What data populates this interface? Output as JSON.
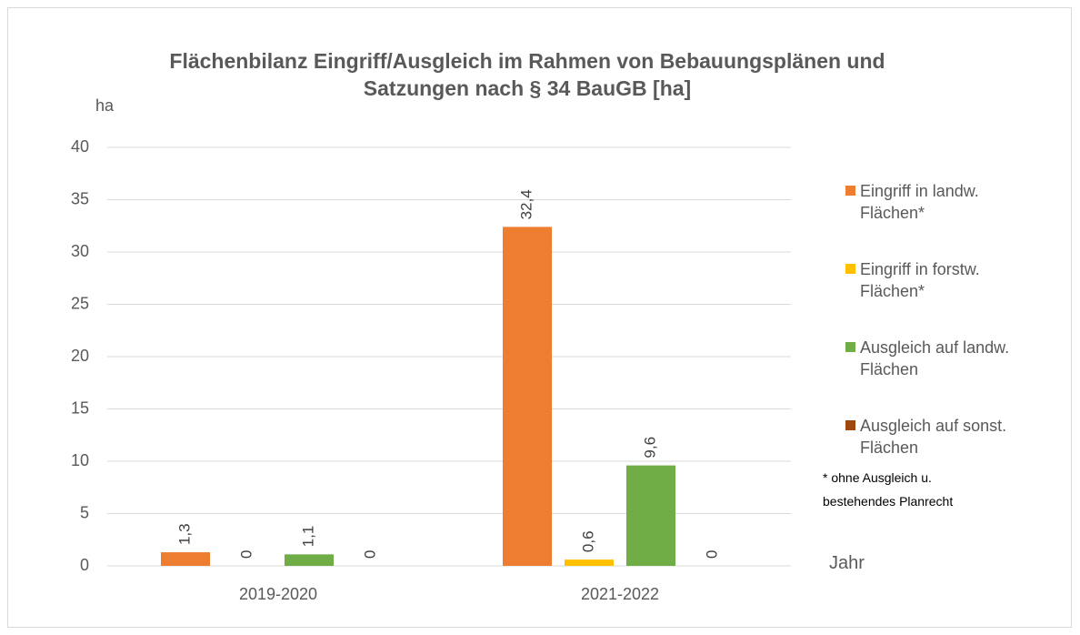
{
  "chart_data": {
    "type": "bar",
    "title": "Flächenbilanz Eingriff/Ausgleich im Rahmen von Bebauungsplänen und Satzungen nach § 34 BauGB [ha]",
    "y_label": "ha",
    "x_label": "Jahr",
    "annotation": "* ohne Ausgleich u. bestehendes Planrecht",
    "categories": [
      "2019-2020",
      "2021-2022"
    ],
    "series": [
      {
        "name": "Eingriff in landw. Flächen*",
        "color": "#ED7D31",
        "values": [
          1.3,
          32.4
        ],
        "value_labels": [
          "1,3",
          "32,4"
        ]
      },
      {
        "name": "Eingriff in forstw. Flächen*",
        "color": "#FFC000",
        "values": [
          0,
          0.6
        ],
        "value_labels": [
          "0",
          "0,6"
        ]
      },
      {
        "name": "Ausgleich auf landw. Flächen",
        "color": "#70AD47",
        "values": [
          1.1,
          9.6
        ],
        "value_labels": [
          "1,1",
          "9,6"
        ]
      },
      {
        "name": "Ausgleich auf sonst. Flächen",
        "color": "#9E480E",
        "values": [
          0,
          0
        ],
        "value_labels": [
          "0",
          "0"
        ]
      }
    ],
    "ylim": [
      0,
      40
    ],
    "yticks": [
      0,
      5,
      10,
      15,
      20,
      25,
      30,
      35,
      40
    ],
    "grid": true,
    "legend": "right"
  }
}
